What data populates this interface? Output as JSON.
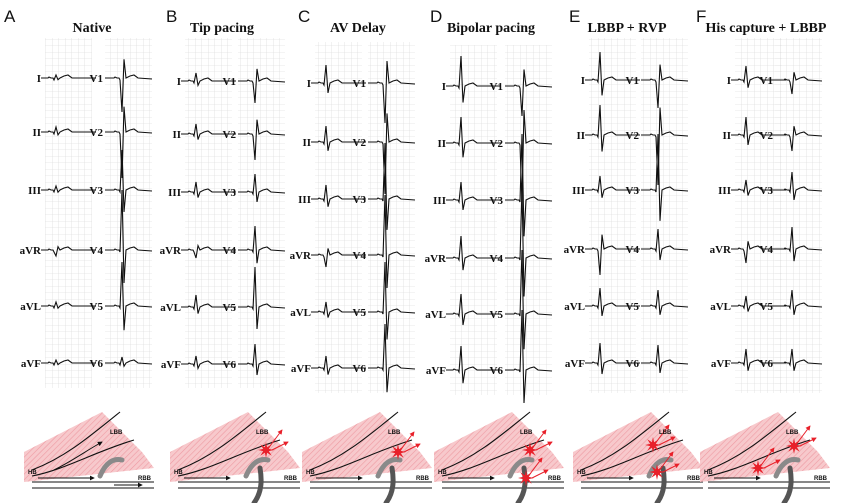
{
  "panels": [
    {
      "letter": "A",
      "title": "Native",
      "mode": "native"
    },
    {
      "letter": "B",
      "title": "Tip pacing",
      "mode": "tip"
    },
    {
      "letter": "C",
      "title": "AV Delay",
      "mode": "av"
    },
    {
      "letter": "D",
      "title": "Bipolar pacing",
      "mode": "bipolar"
    },
    {
      "letter": "E",
      "title": "LBBP + RVP",
      "mode": "lbbp_rvp"
    },
    {
      "letter": "F",
      "title": "His capture + LBBP",
      "mode": "his_lbbp"
    }
  ],
  "limb_leads": [
    "I",
    "II",
    "III",
    "aVR",
    "aVL",
    "aVF"
  ],
  "chest_leads": [
    "V1",
    "V2",
    "V3",
    "V4",
    "V5",
    "V6"
  ],
  "diagram_labels": {
    "lbb": "LBB",
    "hb": "HB",
    "rbb": "RBB"
  },
  "colors": {
    "grid": "#cfcfcf",
    "trace": "#111111",
    "tissue": "#f4b3b8",
    "capture": "#e8202a",
    "lead": "#555555"
  }
}
